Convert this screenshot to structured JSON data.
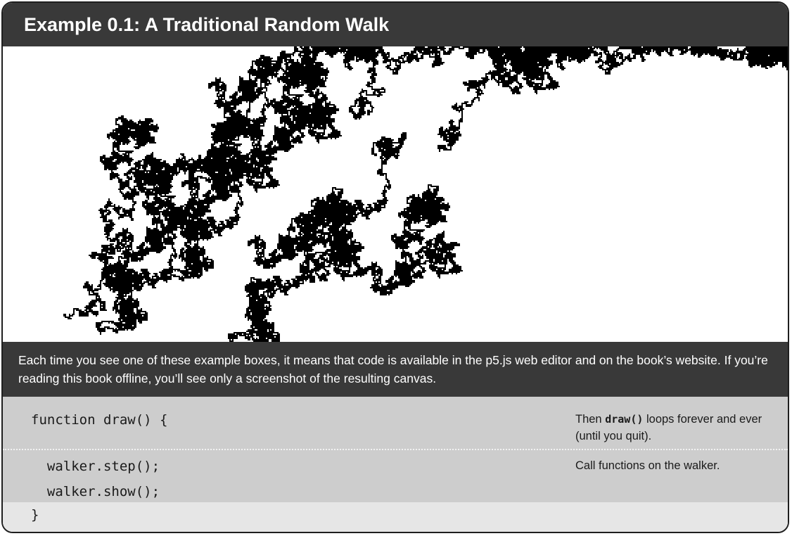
{
  "example": {
    "title": "Example 0.1: A Traditional Random Walk",
    "caption": "Each time you see one of these example boxes, it means that code is available in the p5.js web editor and on the book’s website. If you’re reading this book offline, you’ll see only a screenshot of the resulting canvas."
  },
  "code": {
    "line1": "function draw() {",
    "line2": "  walker.step();",
    "line3": "  walker.show();",
    "line4": "}"
  },
  "notes": {
    "note1_before": "Then ",
    "note1_code": "draw()",
    "note1_after": " loops forever and ever (until you quit).",
    "note2": "Call functions on the walker."
  },
  "colors": {
    "header_bg": "#393939",
    "code_bg": "#cdcdcd",
    "walk": "#000000"
  }
}
